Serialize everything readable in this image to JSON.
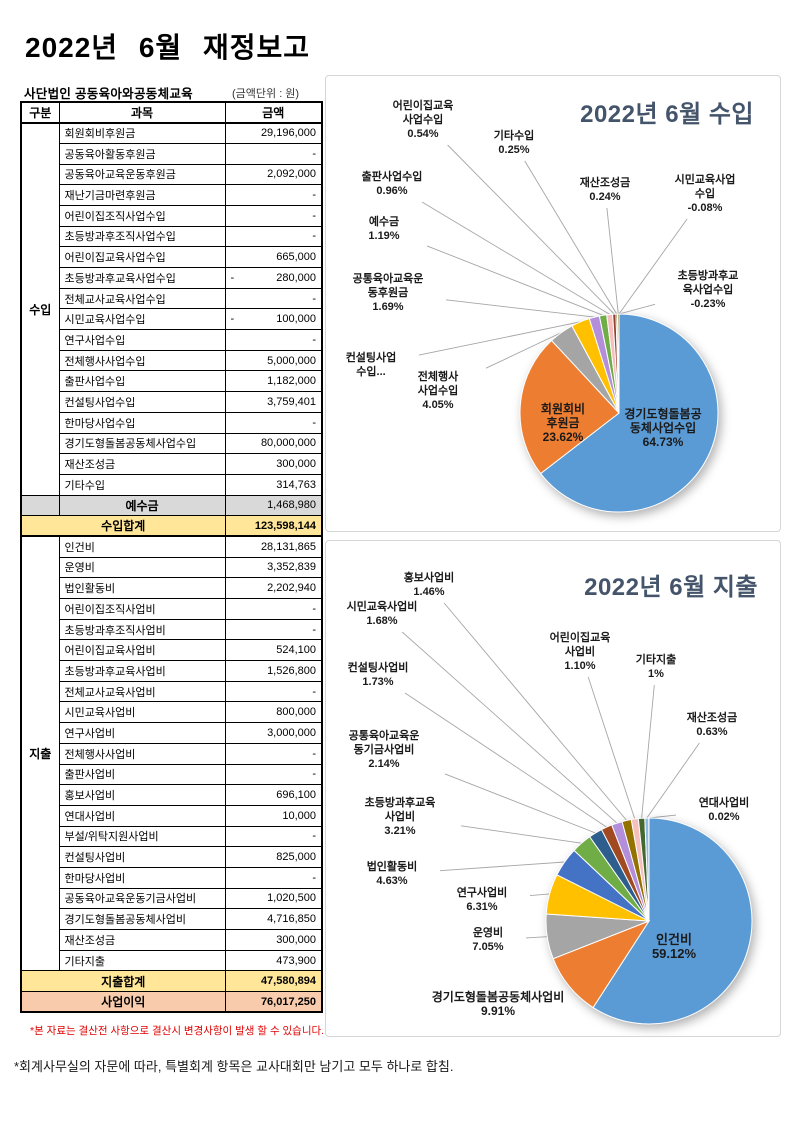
{
  "header": {
    "title": "2022년 6월 재정보고",
    "org": "사단법인 공동육아와공동체교육",
    "unit_note": "(금액단위 : 원)"
  },
  "table": {
    "columns": [
      "구분",
      "과목",
      "금액"
    ],
    "income_group_label": "수입",
    "expense_group_label": "지출",
    "income_rows": [
      {
        "name": "회원회비후원금",
        "amount": "29,196,000"
      },
      {
        "name": "공동육아활동후원금",
        "amount": "-"
      },
      {
        "name": "공동육아교육운동후원금",
        "amount": "2,092,000"
      },
      {
        "name": "재난기금마련후원금",
        "amount": "-"
      },
      {
        "name": "어린이집조직사업수입",
        "amount": "-"
      },
      {
        "name": "초등방과후조직사업수입",
        "amount": "-"
      },
      {
        "name": "어린이집교육사업수입",
        "amount": "665,000"
      },
      {
        "name": "초등방과후교육사업수입",
        "amount": "280,000",
        "neg": true
      },
      {
        "name": "전체교사교육사업수입",
        "amount": "-"
      },
      {
        "name": "시민교육사업수입",
        "amount": "100,000",
        "neg": true
      },
      {
        "name": "연구사업수입",
        "amount": "-"
      },
      {
        "name": "전체행사사업수입",
        "amount": "5,000,000"
      },
      {
        "name": "출판사업수입",
        "amount": "1,182,000"
      },
      {
        "name": "컨설팅사업수입",
        "amount": "3,759,401"
      },
      {
        "name": "한마당사업수입",
        "amount": "-"
      },
      {
        "name": "경기도형돌봄공동체사업수입",
        "amount": "80,000,000"
      },
      {
        "name": "재산조성금",
        "amount": "300,000"
      },
      {
        "name": "기타수입",
        "amount": "314,763"
      }
    ],
    "deposit_row": {
      "label": "예수금",
      "amount": "1,468,980"
    },
    "income_total_row": {
      "label": "수입합계",
      "amount": "123,598,144"
    },
    "expense_rows": [
      {
        "name": "인건비",
        "amount": "28,131,865"
      },
      {
        "name": "운영비",
        "amount": "3,352,839"
      },
      {
        "name": "법인활동비",
        "amount": "2,202,940"
      },
      {
        "name": "어린이집조직사업비",
        "amount": "-"
      },
      {
        "name": "초등방과후조직사업비",
        "amount": "-"
      },
      {
        "name": "어린이집교육사업비",
        "amount": "524,100"
      },
      {
        "name": "초등방과후교육사업비",
        "amount": "1,526,800"
      },
      {
        "name": "전체교사교육사업비",
        "amount": "-"
      },
      {
        "name": "시민교육사업비",
        "amount": "800,000"
      },
      {
        "name": "연구사업비",
        "amount": "3,000,000"
      },
      {
        "name": "전체행사사업비",
        "amount": "-"
      },
      {
        "name": "출판사업비",
        "amount": "-"
      },
      {
        "name": "홍보사업비",
        "amount": "696,100"
      },
      {
        "name": "연대사업비",
        "amount": "10,000"
      },
      {
        "name": "부설/위탁지원사업비",
        "amount": "-"
      },
      {
        "name": "컨설팅사업비",
        "amount": "825,000"
      },
      {
        "name": "한마당사업비",
        "amount": "-"
      },
      {
        "name": "공동육아교육운동기금사업비",
        "amount": "1,020,500"
      },
      {
        "name": "경기도형돌봄공동체사업비",
        "amount": "4,716,850"
      },
      {
        "name": "재산조성금",
        "amount": "300,000"
      },
      {
        "name": "기타지출",
        "amount": "473,900"
      }
    ],
    "expense_total_row": {
      "label": "지출합계",
      "amount": "47,580,894"
    },
    "profit_row": {
      "label": "사업이익",
      "amount": "76,017,250"
    }
  },
  "footnotes": {
    "red": "*본 자료는 결산전 사항으로 결산시 변경사항이 발생 할 수 있습니다.",
    "black": "*회계사무실의 자문에 따라, 특별회계 항목은 교사대회만 남기고 모두 하나로 합침."
  },
  "chart_data": [
    {
      "type": "pie",
      "title": "2022년 6월 수입",
      "title_color": "#44546A",
      "legend": "none",
      "slices": [
        {
          "name": "경기도형돌봄공\n동체사업수입",
          "pct_label": "64.73%",
          "value": 64.73,
          "color": "#5B9BD5"
        },
        {
          "name": "회원회비\n후원금",
          "pct_label": "23.62%",
          "value": 23.62,
          "color": "#ED7D31"
        },
        {
          "name": "전체행사\n사업수입",
          "pct_label": "4.05%",
          "value": 4.05,
          "color": "#A5A5A5"
        },
        {
          "name": "컨설팅사업\n수입...",
          "pct_label": null,
          "value": 3.04,
          "color": "#FFC000"
        },
        {
          "name": "공통육아교육운\n동후원금",
          "pct_label": "1.69%",
          "value": 1.69,
          "color": "#B38FDB"
        },
        {
          "name": "예수금",
          "pct_label": "1.19%",
          "value": 1.19,
          "color": "#70AD47"
        },
        {
          "name": "출판사업수입",
          "pct_label": "0.96%",
          "value": 0.96,
          "color": "#F5BFBE"
        },
        {
          "name": "어린이집교육\n사업수입",
          "pct_label": "0.54%",
          "value": 0.54,
          "color": "#94402C"
        },
        {
          "name": "기타수입",
          "pct_label": "0.25%",
          "value": 0.25,
          "color": "#5E7530"
        },
        {
          "name": "재산조성금",
          "pct_label": "0.24%",
          "value": 0.24,
          "color": "#806000"
        },
        {
          "name": "시민교육사업\n수입",
          "pct_label": "-0.08%",
          "value": -0.08,
          "color": "#843C0C"
        },
        {
          "name": "초등방과후교\n육사업수입",
          "pct_label": "-0.23%",
          "value": -0.23,
          "color": "#4472C4"
        }
      ]
    },
    {
      "type": "pie",
      "title": "2022년 6월 지출",
      "title_color": "#44546A",
      "legend": "none",
      "slices": [
        {
          "name": "인건비",
          "pct_label": "59.12%",
          "value": 59.12,
          "color": "#5B9BD5"
        },
        {
          "name": "경기도형돌봄공동체사업비",
          "pct_label": "9.91%",
          "value": 9.91,
          "color": "#ED7D31"
        },
        {
          "name": "운영비",
          "pct_label": "7.05%",
          "value": 7.05,
          "color": "#A5A5A5"
        },
        {
          "name": "연구사업비",
          "pct_label": "6.31%",
          "value": 6.31,
          "color": "#FFC000"
        },
        {
          "name": "법인활동비",
          "pct_label": "4.63%",
          "value": 4.63,
          "color": "#4472C4"
        },
        {
          "name": "초등방과후교육\n사업비",
          "pct_label": "3.21%",
          "value": 3.21,
          "color": "#70AD47"
        },
        {
          "name": "공통육아교육운\n동기금사업비",
          "pct_label": "2.14%",
          "value": 2.14,
          "color": "#2E5E8E"
        },
        {
          "name": "컨설팅사업비",
          "pct_label": "1.73%",
          "value": 1.73,
          "color": "#A14A22"
        },
        {
          "name": "시민교육사업비",
          "pct_label": "1.68%",
          "value": 1.68,
          "color": "#B38FDB"
        },
        {
          "name": "홍보사업비",
          "pct_label": "1.46%",
          "value": 1.46,
          "color": "#937200"
        },
        {
          "name": "어린이집교육\n사업비",
          "pct_label": "1.10%",
          "value": 1.1,
          "color": "#F5BFBE"
        },
        {
          "name": "기타지출",
          "pct_label": "1%",
          "value": 1.0,
          "color": "#45682F"
        },
        {
          "name": "재산조성금",
          "pct_label": "0.63%",
          "value": 0.63,
          "color": "#8FBBE0"
        },
        {
          "name": "연대사업비",
          "pct_label": "0.02%",
          "value": 0.02,
          "color": "#4E7B3A"
        }
      ]
    }
  ]
}
